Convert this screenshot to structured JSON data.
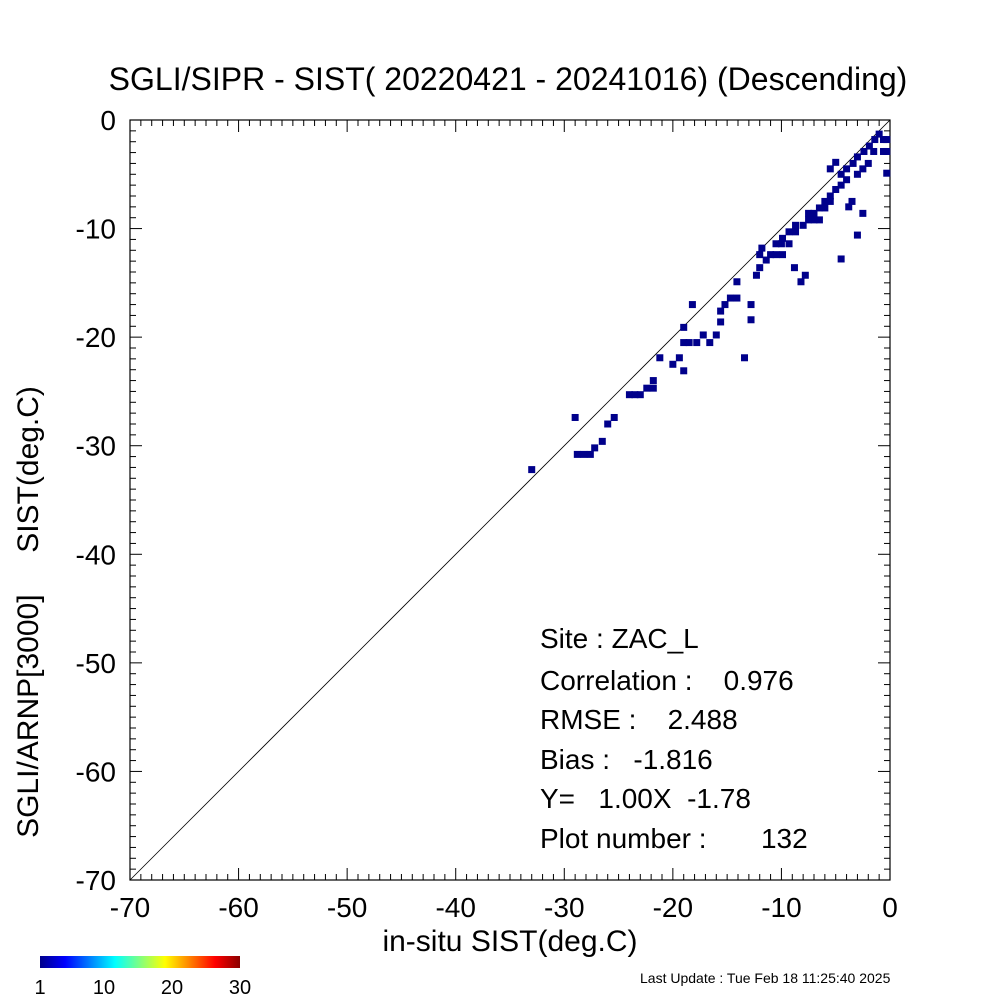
{
  "chart_data": {
    "type": "scatter",
    "title": "SGLI/SIPR - SIST( 20220421 - 20241016) (Descending)",
    "xlabel": "in-situ SIST(deg.C)",
    "ylabel": "SGLI/ARNP[3000]     SIST(deg.C)",
    "xlim": [
      -70,
      0
    ],
    "ylim": [
      -70,
      0
    ],
    "xticks": [
      "-70",
      "-60",
      "-50",
      "-40",
      "-30",
      "-20",
      "-10",
      "0"
    ],
    "yticks": [
      "-70",
      "-60",
      "-50",
      "-40",
      "-30",
      "-20",
      "-10",
      "0"
    ],
    "reference_line": "y = x",
    "point_color": "#00008b",
    "points": [
      [
        -33.0,
        -32.2
      ],
      [
        -29.0,
        -27.4
      ],
      [
        -28.8,
        -30.8
      ],
      [
        -28.2,
        -30.8
      ],
      [
        -27.6,
        -30.8
      ],
      [
        -27.2,
        -30.2
      ],
      [
        -26.5,
        -29.6
      ],
      [
        -26.0,
        -28.0
      ],
      [
        -25.4,
        -27.4
      ],
      [
        -24.0,
        -25.3
      ],
      [
        -23.5,
        -25.3
      ],
      [
        -23.0,
        -25.3
      ],
      [
        -22.4,
        -24.7
      ],
      [
        -21.8,
        -24.7
      ],
      [
        -21.8,
        -24.0
      ],
      [
        -21.2,
        -21.9
      ],
      [
        -20.0,
        -22.5
      ],
      [
        -19.4,
        -21.9
      ],
      [
        -19.0,
        -23.1
      ],
      [
        -19.0,
        -20.5
      ],
      [
        -19.0,
        -19.1
      ],
      [
        -18.5,
        -20.5
      ],
      [
        -18.2,
        -17.0
      ],
      [
        -17.8,
        -20.5
      ],
      [
        -17.2,
        -19.8
      ],
      [
        -16.6,
        -20.5
      ],
      [
        -16.0,
        -19.8
      ],
      [
        -15.6,
        -18.6
      ],
      [
        -15.6,
        -17.6
      ],
      [
        -15.2,
        -17.0
      ],
      [
        -14.7,
        -16.4
      ],
      [
        -14.1,
        -16.4
      ],
      [
        -14.1,
        -14.9
      ],
      [
        -13.4,
        -21.9
      ],
      [
        -12.8,
        -18.4
      ],
      [
        -12.8,
        -17.0
      ],
      [
        -12.3,
        -14.3
      ],
      [
        -12.0,
        -13.6
      ],
      [
        -12.0,
        -12.4
      ],
      [
        -11.8,
        -11.8
      ],
      [
        -11.4,
        -12.9
      ],
      [
        -11.0,
        -12.4
      ],
      [
        -10.5,
        -12.4
      ],
      [
        -10.5,
        -11.4
      ],
      [
        -10.0,
        -11.4
      ],
      [
        -9.9,
        -12.4
      ],
      [
        -9.9,
        -10.9
      ],
      [
        -9.3,
        -11.4
      ],
      [
        -9.3,
        -10.3
      ],
      [
        -8.8,
        -13.6
      ],
      [
        -8.7,
        -10.3
      ],
      [
        -8.7,
        -9.7
      ],
      [
        -8.2,
        -14.9
      ],
      [
        -8.0,
        -9.7
      ],
      [
        -7.8,
        -14.3
      ],
      [
        -7.5,
        -9.2
      ],
      [
        -7.5,
        -8.6
      ],
      [
        -7.0,
        -9.2
      ],
      [
        -7.0,
        -8.6
      ],
      [
        -6.5,
        -9.2
      ],
      [
        -6.5,
        -8.1
      ],
      [
        -6.0,
        -8.1
      ],
      [
        -6.0,
        -7.5
      ],
      [
        -5.5,
        -7.5
      ],
      [
        -5.5,
        -7.0
      ],
      [
        -5.5,
        -4.5
      ],
      [
        -5.0,
        -6.4
      ],
      [
        -5.0,
        -3.9
      ],
      [
        -4.5,
        -12.8
      ],
      [
        -4.5,
        -6.0
      ],
      [
        -4.5,
        -5.0
      ],
      [
        -4.0,
        -5.5
      ],
      [
        -4.0,
        -4.5
      ],
      [
        -3.8,
        -8.0
      ],
      [
        -3.5,
        -7.5
      ],
      [
        -3.4,
        -4.0
      ],
      [
        -3.0,
        -10.6
      ],
      [
        -3.0,
        -5.0
      ],
      [
        -3.0,
        -3.4
      ],
      [
        -2.5,
        -8.6
      ],
      [
        -2.5,
        -4.5
      ],
      [
        -2.4,
        -2.9
      ],
      [
        -2.0,
        -4.0
      ],
      [
        -1.9,
        -2.4
      ],
      [
        -1.5,
        -2.9
      ],
      [
        -1.4,
        -1.8
      ],
      [
        -1.0,
        -1.3
      ],
      [
        -0.6,
        -2.9
      ],
      [
        -0.6,
        -1.8
      ],
      [
        -0.3,
        -4.9
      ],
      [
        -0.3,
        -2.9
      ],
      [
        -0.3,
        -1.8
      ]
    ],
    "colorbar": {
      "labels": [
        "1",
        "10",
        "20",
        "30"
      ],
      "colors": [
        "#00008b",
        "#0000ff",
        "#0080ff",
        "#00ffff",
        "#80ff80",
        "#ffff00",
        "#ff8000",
        "#ff0000",
        "#8b0000"
      ]
    }
  },
  "stats": {
    "site": "Site : ZAC_L",
    "correlation": "Correlation :    0.976",
    "rmse": "RMSE :    2.488",
    "bias": "Bias :   -1.816",
    "regression": "Y=   1.00X  -1.78",
    "plot_number": "Plot number :       132"
  },
  "footer": {
    "last_update": "Last Update : Tue Feb 18 11:25:40 2025"
  }
}
